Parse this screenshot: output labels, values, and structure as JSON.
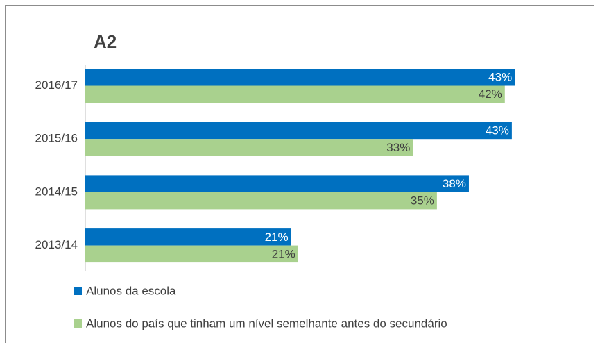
{
  "chart_data": {
    "type": "bar",
    "orientation": "horizontal",
    "title": "A2",
    "categories": [
      "2016/17",
      "2015/16",
      "2014/15",
      "2013/14"
    ],
    "series": [
      {
        "name": "Alunos da escola",
        "color": "#0070c0",
        "values": [
          43.0,
          42.7,
          38.4,
          20.6
        ],
        "value_labels": [
          "43%",
          "43%",
          "38%",
          "21%"
        ]
      },
      {
        "name": "Alunos do país que tinham um nível semelhante antes do secundário",
        "color": "#a9d18e",
        "values": [
          42.0,
          32.8,
          35.2,
          21.3
        ],
        "value_labels": [
          "42%",
          "33%",
          "35%",
          "21%"
        ]
      }
    ]
  }
}
